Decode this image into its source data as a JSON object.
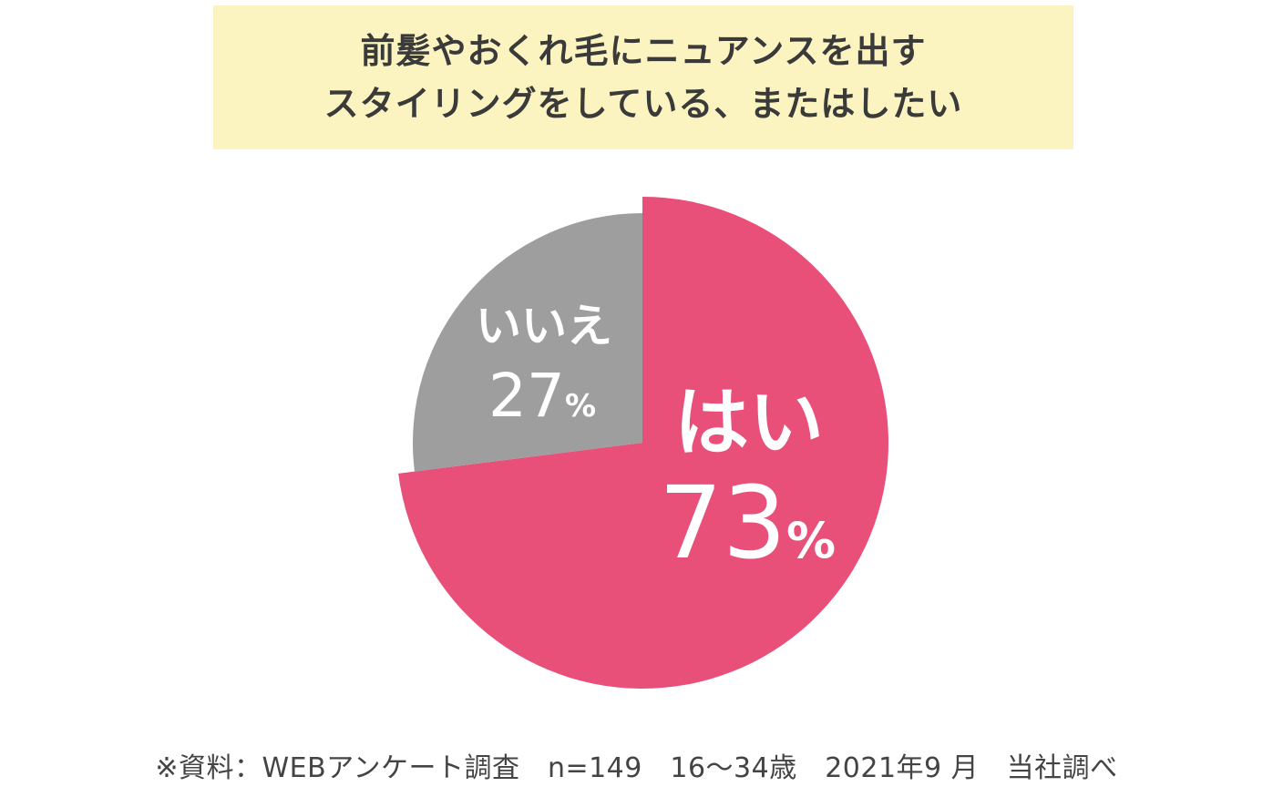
{
  "title_lines": [
    "前髪やおくれ毛にニュアンスを出す",
    "スタイリングをしている、またはしたい"
  ],
  "chart_data": {
    "type": "pie",
    "slices": [
      {
        "label": "はい",
        "value": 73,
        "percent_text": "73",
        "percent_sign": "%",
        "color": "#e8507a"
      },
      {
        "label": "いいえ",
        "value": 27,
        "percent_text": "27",
        "percent_sign": "%",
        "color": "#9e9e9e"
      }
    ],
    "start": "12 o'clock",
    "direction": "clockwise",
    "highlighted_slice": "はい"
  },
  "footer": "※資料：WEBアンケート調査　n=149　16〜34歳　2021年9 月　当社調べ"
}
